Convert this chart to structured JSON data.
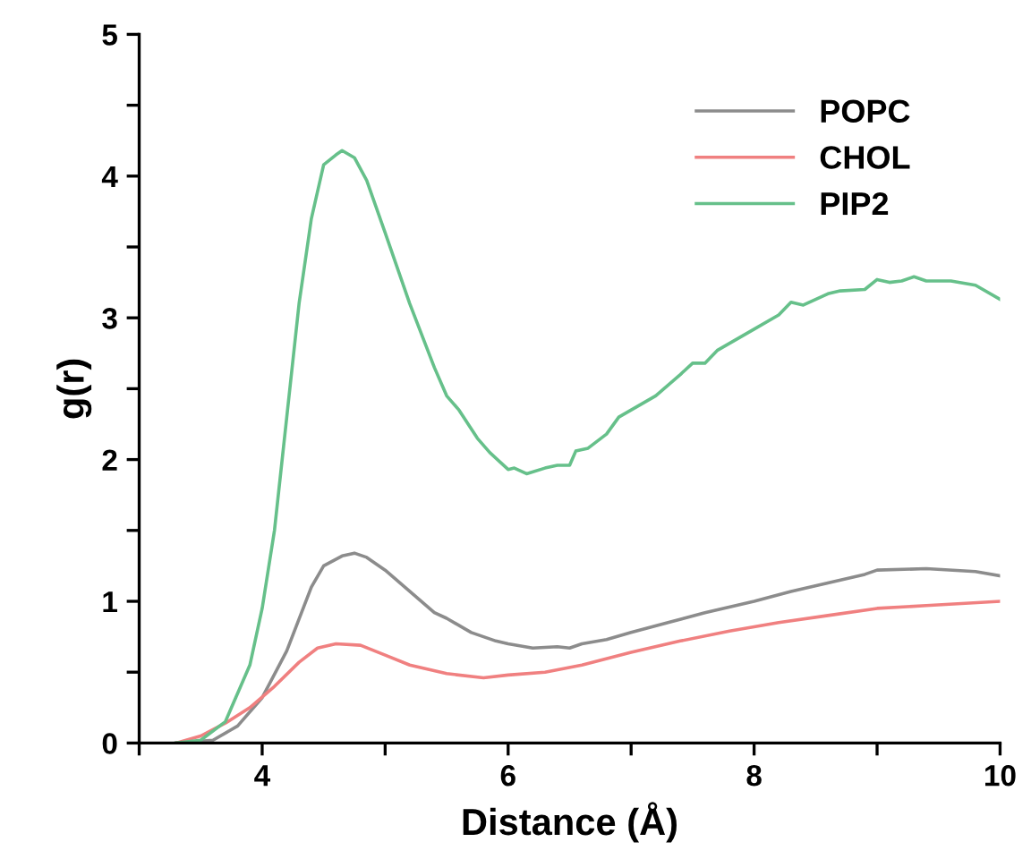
{
  "chart_data": {
    "type": "line",
    "xlabel": "Distance (Å)",
    "ylabel": "g(r)",
    "xlim": [
      3,
      10
    ],
    "ylim": [
      0,
      5
    ],
    "xticks": [
      {
        "value": 3,
        "label": null
      },
      4,
      {
        "value": 5,
        "label": null
      },
      6,
      {
        "value": 7,
        "label": null
      },
      8,
      {
        "value": 9,
        "label": null
      },
      10
    ],
    "yticks": [
      0,
      {
        "value": 0.5,
        "label": null
      },
      1,
      {
        "value": 1.5,
        "label": null
      },
      2,
      {
        "value": 2.5,
        "label": null
      },
      3,
      {
        "value": 3.5,
        "label": null
      },
      4,
      {
        "value": 4.5,
        "label": null
      },
      5
    ],
    "grid": false,
    "legend": "top right",
    "marker": "none",
    "line_style": "solid",
    "series": [
      {
        "name": "POPC",
        "color": "#8c8c8c",
        "x": [
          3.3,
          3.6,
          3.8,
          4.0,
          4.2,
          4.4,
          4.5,
          4.65,
          4.75,
          4.85,
          5.0,
          5.2,
          5.4,
          5.5,
          5.7,
          5.9,
          6.0,
          6.2,
          6.4,
          6.5,
          6.6,
          6.8,
          7.0,
          7.3,
          7.6,
          8.0,
          8.3,
          8.6,
          8.9,
          9.0,
          9.4,
          9.8,
          10.0
        ],
        "values": [
          0,
          0.02,
          0.12,
          0.32,
          0.65,
          1.1,
          1.25,
          1.32,
          1.34,
          1.31,
          1.22,
          1.07,
          0.92,
          0.88,
          0.78,
          0.72,
          0.7,
          0.67,
          0.68,
          0.67,
          0.7,
          0.73,
          0.78,
          0.85,
          0.92,
          1.0,
          1.07,
          1.13,
          1.19,
          1.22,
          1.23,
          1.21,
          1.18
        ]
      },
      {
        "name": "CHOL",
        "color": "#f08080",
        "x": [
          3.3,
          3.5,
          3.7,
          3.9,
          4.1,
          4.3,
          4.45,
          4.6,
          4.8,
          5.0,
          5.2,
          5.5,
          5.8,
          6.0,
          6.3,
          6.6,
          7.0,
          7.4,
          7.8,
          8.2,
          8.6,
          9.0,
          9.4,
          10.0
        ],
        "values": [
          0,
          0.05,
          0.14,
          0.25,
          0.4,
          0.57,
          0.67,
          0.7,
          0.69,
          0.62,
          0.55,
          0.49,
          0.46,
          0.48,
          0.5,
          0.55,
          0.64,
          0.72,
          0.79,
          0.85,
          0.9,
          0.95,
          0.97,
          1.0
        ]
      },
      {
        "name": "PIP2",
        "color": "#66c08a",
        "x": [
          3.3,
          3.5,
          3.7,
          3.9,
          4.0,
          4.1,
          4.2,
          4.3,
          4.4,
          4.5,
          4.6,
          4.65,
          4.75,
          4.85,
          5.0,
          5.2,
          5.4,
          5.5,
          5.6,
          5.75,
          5.85,
          6.0,
          6.05,
          6.15,
          6.3,
          6.4,
          6.5,
          6.55,
          6.65,
          6.8,
          6.9,
          7.2,
          7.4,
          7.5,
          7.6,
          7.7,
          8.0,
          8.2,
          8.3,
          8.4,
          8.6,
          8.7,
          8.9,
          9.0,
          9.1,
          9.2,
          9.3,
          9.4,
          9.6,
          9.8,
          10.0
        ],
        "values": [
          0,
          0.02,
          0.15,
          0.55,
          0.95,
          1.5,
          2.3,
          3.1,
          3.7,
          4.08,
          4.15,
          4.18,
          4.13,
          3.97,
          3.6,
          3.1,
          2.65,
          2.45,
          2.35,
          2.15,
          2.05,
          1.93,
          1.94,
          1.9,
          1.94,
          1.96,
          1.96,
          2.06,
          2.08,
          2.18,
          2.3,
          2.45,
          2.6,
          2.68,
          2.68,
          2.77,
          2.92,
          3.02,
          3.11,
          3.09,
          3.17,
          3.19,
          3.2,
          3.27,
          3.25,
          3.26,
          3.29,
          3.26,
          3.26,
          3.23,
          3.13
        ]
      }
    ]
  }
}
